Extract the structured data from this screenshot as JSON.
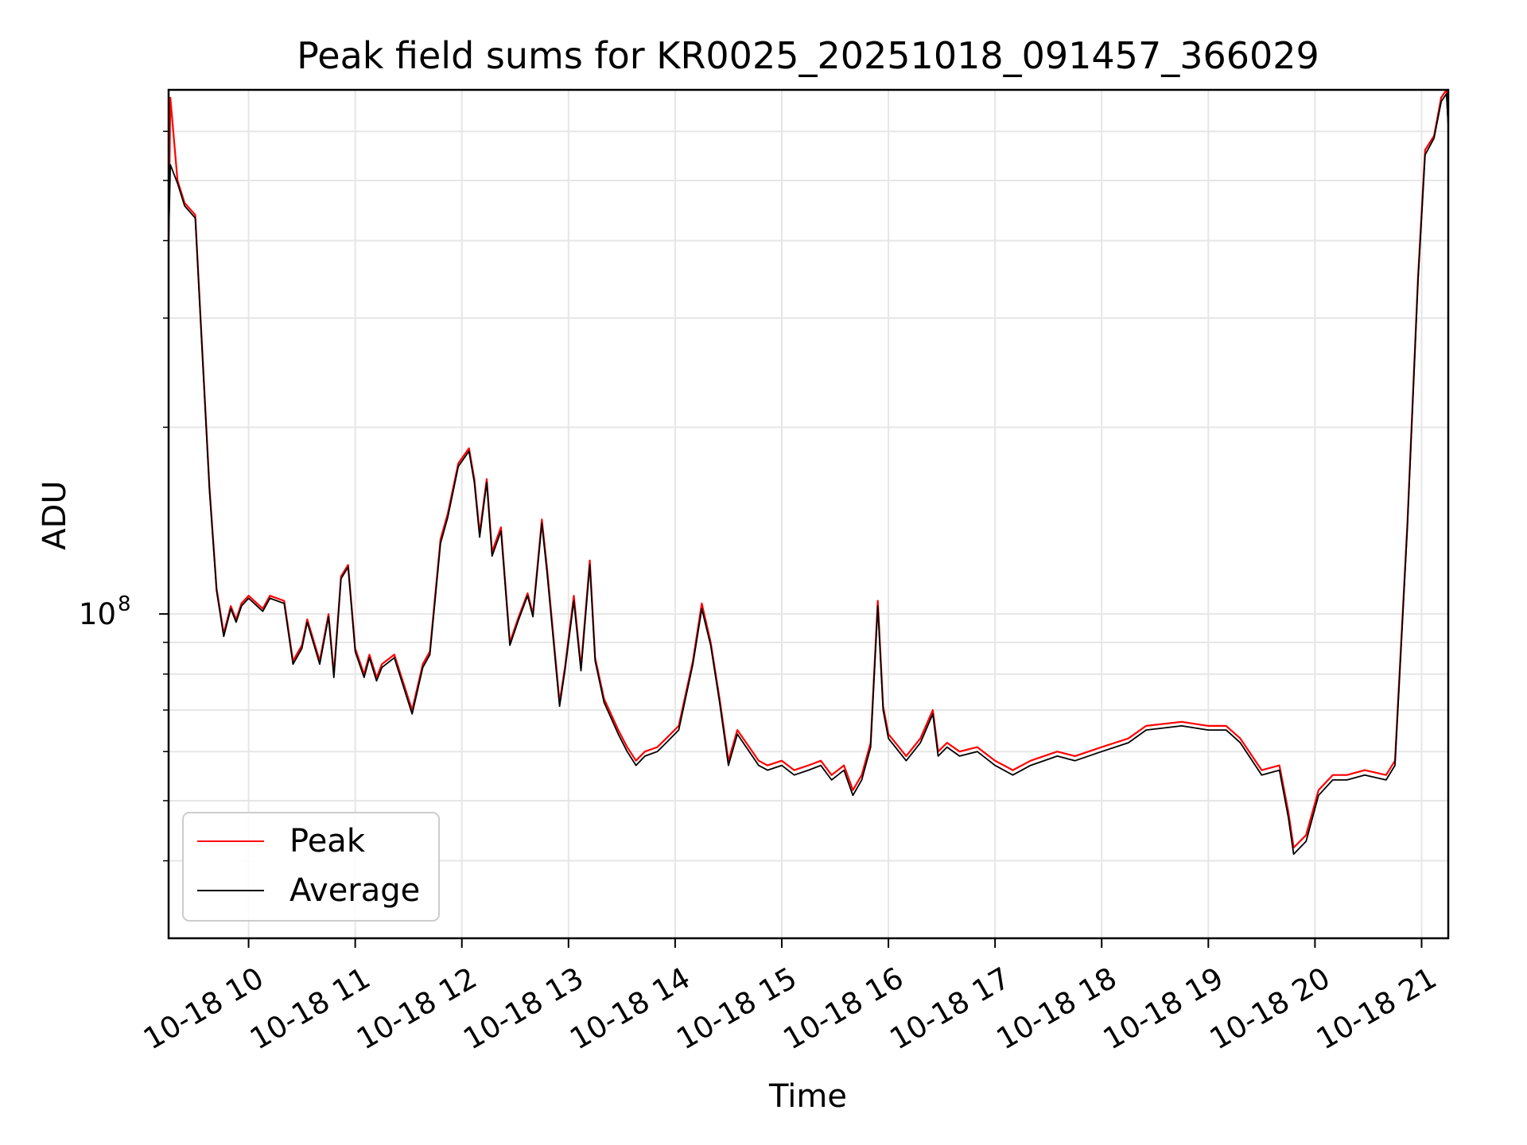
{
  "chart_data": {
    "type": "line",
    "title": "Peak field sums for KR0025_20251018_091457_366029",
    "xlabel": "Time",
    "ylabel": "ADU",
    "x_scale": "time",
    "y_scale": "log",
    "x_range": [
      "2025-10-18T09:15",
      "2025-10-18T21:15"
    ],
    "ylim": [
      30000000,
      700000000
    ],
    "x_ticks": [
      "10-18 10",
      "10-18 11",
      "10-18 12",
      "10-18 13",
      "10-18 14",
      "10-18 15",
      "10-18 16",
      "10-18 17",
      "10-18 18",
      "10-18 19",
      "10-18 20",
      "10-18 21"
    ],
    "x_tick_times": [
      "2025-10-18T10:00",
      "2025-10-18T11:00",
      "2025-10-18T12:00",
      "2025-10-18T13:00",
      "2025-10-18T14:00",
      "2025-10-18T15:00",
      "2025-10-18T16:00",
      "2025-10-18T17:00",
      "2025-10-18T18:00",
      "2025-10-18T19:00",
      "2025-10-18T20:00",
      "2025-10-18T21:00"
    ],
    "y_major_ticks": [
      {
        "value": 100000000,
        "base": "10",
        "exponent": "8"
      }
    ],
    "y_minor_ticks": [
      40000000,
      50000000,
      60000000,
      70000000,
      80000000,
      90000000,
      200000000,
      300000000,
      400000000,
      500000000,
      600000000
    ],
    "grid": true,
    "legend": {
      "position": "lower-left"
    },
    "series": [
      {
        "name": "Peak",
        "color": "#ff0000",
        "x": [
          "2025-10-18T09:15",
          "2025-10-18T09:16",
          "2025-10-18T09:20",
          "2025-10-18T09:24",
          "2025-10-18T09:27",
          "2025-10-18T09:30",
          "2025-10-18T09:33",
          "2025-10-18T09:38",
          "2025-10-18T09:42",
          "2025-10-18T09:46",
          "2025-10-18T09:50",
          "2025-10-18T09:53",
          "2025-10-18T09:56",
          "2025-10-18T10:00",
          "2025-10-18T10:08",
          "2025-10-18T10:12",
          "2025-10-18T10:20",
          "2025-10-18T10:25",
          "2025-10-18T10:30",
          "2025-10-18T10:33",
          "2025-10-18T10:40",
          "2025-10-18T10:45",
          "2025-10-18T10:48",
          "2025-10-18T10:52",
          "2025-10-18T10:56",
          "2025-10-18T11:00",
          "2025-10-18T11:05",
          "2025-10-18T11:08",
          "2025-10-18T11:12",
          "2025-10-18T11:15",
          "2025-10-18T11:22",
          "2025-10-18T11:28",
          "2025-10-18T11:32",
          "2025-10-18T11:38",
          "2025-10-18T11:42",
          "2025-10-18T11:48",
          "2025-10-18T11:52",
          "2025-10-18T11:58",
          "2025-10-18T12:04",
          "2025-10-18T12:07",
          "2025-10-18T12:10",
          "2025-10-18T12:14",
          "2025-10-18T12:17",
          "2025-10-18T12:22",
          "2025-10-18T12:27",
          "2025-10-18T12:32",
          "2025-10-18T12:37",
          "2025-10-18T12:40",
          "2025-10-18T12:45",
          "2025-10-18T12:48",
          "2025-10-18T12:55",
          "2025-10-18T12:58",
          "2025-10-18T13:03",
          "2025-10-18T13:07",
          "2025-10-18T13:12",
          "2025-10-18T13:15",
          "2025-10-18T13:20",
          "2025-10-18T13:28",
          "2025-10-18T13:33",
          "2025-10-18T13:38",
          "2025-10-18T13:43",
          "2025-10-18T13:50",
          "2025-10-18T13:55",
          "2025-10-18T14:02",
          "2025-10-18T14:10",
          "2025-10-18T14:15",
          "2025-10-18T14:20",
          "2025-10-18T14:25",
          "2025-10-18T14:30",
          "2025-10-18T14:35",
          "2025-10-18T14:40",
          "2025-10-18T14:47",
          "2025-10-18T14:52",
          "2025-10-18T15:00",
          "2025-10-18T15:07",
          "2025-10-18T15:15",
          "2025-10-18T15:22",
          "2025-10-18T15:28",
          "2025-10-18T15:35",
          "2025-10-18T15:40",
          "2025-10-18T15:45",
          "2025-10-18T15:50",
          "2025-10-18T15:54",
          "2025-10-18T15:57",
          "2025-10-18T16:00",
          "2025-10-18T16:10",
          "2025-10-18T16:18",
          "2025-10-18T16:25",
          "2025-10-18T16:28",
          "2025-10-18T16:33",
          "2025-10-18T16:40",
          "2025-10-18T16:50",
          "2025-10-18T17:00",
          "2025-10-18T17:10",
          "2025-10-18T17:20",
          "2025-10-18T17:35",
          "2025-10-18T17:45",
          "2025-10-18T18:00",
          "2025-10-18T18:15",
          "2025-10-18T18:25",
          "2025-10-18T18:45",
          "2025-10-18T19:00",
          "2025-10-18T19:10",
          "2025-10-18T19:18",
          "2025-10-18T19:30",
          "2025-10-18T19:40",
          "2025-10-18T19:45",
          "2025-10-18T19:48",
          "2025-10-18T19:55",
          "2025-10-18T20:02",
          "2025-10-18T20:10",
          "2025-10-18T20:18",
          "2025-10-18T20:28",
          "2025-10-18T20:40",
          "2025-10-18T20:45",
          "2025-10-18T20:52",
          "2025-10-18T20:58",
          "2025-10-18T21:02",
          "2025-10-18T21:07",
          "2025-10-18T21:11",
          "2025-10-18T21:14",
          "2025-10-18T21:15"
        ],
        "values": [
          400000000,
          680000000,
          500000000,
          460000000,
          450000000,
          440000000,
          300000000,
          160000000,
          110000000,
          93000000,
          103000000,
          98000000,
          104000000,
          107000000,
          102000000,
          107000000,
          105000000,
          84000000,
          89000000,
          98000000,
          84000000,
          100000000,
          80000000,
          115000000,
          120000000,
          88000000,
          80000000,
          86000000,
          79000000,
          83000000,
          86000000,
          76000000,
          70000000,
          83000000,
          87000000,
          132000000,
          145000000,
          175000000,
          185000000,
          165000000,
          135000000,
          165000000,
          126000000,
          138000000,
          90000000,
          99000000,
          108000000,
          100000000,
          142000000,
          118000000,
          72000000,
          82000000,
          107000000,
          82000000,
          122000000,
          85000000,
          73000000,
          65000000,
          61000000,
          58000000,
          60000000,
          61000000,
          63000000,
          66000000,
          84000000,
          104000000,
          90000000,
          73000000,
          58000000,
          65000000,
          62000000,
          58000000,
          57000000,
          58000000,
          56000000,
          57000000,
          58000000,
          55000000,
          57000000,
          52000000,
          55000000,
          62000000,
          105000000,
          71000000,
          64000000,
          59000000,
          63000000,
          70000000,
          60000000,
          62000000,
          60000000,
          61000000,
          58000000,
          56000000,
          58000000,
          60000000,
          59000000,
          61000000,
          63000000,
          66000000,
          67000000,
          66000000,
          66000000,
          63000000,
          56000000,
          57000000,
          48000000,
          42000000,
          44000000,
          52000000,
          55000000,
          55000000,
          56000000,
          55000000,
          58000000,
          140000000,
          350000000,
          560000000,
          590000000,
          680000000,
          700000000,
          620000000
        ]
      },
      {
        "name": "Average",
        "color": "#000000",
        "x": [
          "2025-10-18T09:15",
          "2025-10-18T09:16",
          "2025-10-18T09:20",
          "2025-10-18T09:24",
          "2025-10-18T09:27",
          "2025-10-18T09:30",
          "2025-10-18T09:33",
          "2025-10-18T09:38",
          "2025-10-18T09:42",
          "2025-10-18T09:46",
          "2025-10-18T09:50",
          "2025-10-18T09:53",
          "2025-10-18T09:56",
          "2025-10-18T10:00",
          "2025-10-18T10:08",
          "2025-10-18T10:12",
          "2025-10-18T10:20",
          "2025-10-18T10:25",
          "2025-10-18T10:30",
          "2025-10-18T10:33",
          "2025-10-18T10:40",
          "2025-10-18T10:45",
          "2025-10-18T10:48",
          "2025-10-18T10:52",
          "2025-10-18T10:56",
          "2025-10-18T11:00",
          "2025-10-18T11:05",
          "2025-10-18T11:08",
          "2025-10-18T11:12",
          "2025-10-18T11:15",
          "2025-10-18T11:22",
          "2025-10-18T11:28",
          "2025-10-18T11:32",
          "2025-10-18T11:38",
          "2025-10-18T11:42",
          "2025-10-18T11:48",
          "2025-10-18T11:52",
          "2025-10-18T11:58",
          "2025-10-18T12:04",
          "2025-10-18T12:07",
          "2025-10-18T12:10",
          "2025-10-18T12:14",
          "2025-10-18T12:17",
          "2025-10-18T12:22",
          "2025-10-18T12:27",
          "2025-10-18T12:32",
          "2025-10-18T12:37",
          "2025-10-18T12:40",
          "2025-10-18T12:45",
          "2025-10-18T12:48",
          "2025-10-18T12:55",
          "2025-10-18T12:58",
          "2025-10-18T13:03",
          "2025-10-18T13:07",
          "2025-10-18T13:12",
          "2025-10-18T13:15",
          "2025-10-18T13:20",
          "2025-10-18T13:28",
          "2025-10-18T13:33",
          "2025-10-18T13:38",
          "2025-10-18T13:43",
          "2025-10-18T13:50",
          "2025-10-18T13:55",
          "2025-10-18T14:02",
          "2025-10-18T14:10",
          "2025-10-18T14:15",
          "2025-10-18T14:20",
          "2025-10-18T14:25",
          "2025-10-18T14:30",
          "2025-10-18T14:35",
          "2025-10-18T14:40",
          "2025-10-18T14:47",
          "2025-10-18T14:52",
          "2025-10-18T15:00",
          "2025-10-18T15:07",
          "2025-10-18T15:15",
          "2025-10-18T15:22",
          "2025-10-18T15:28",
          "2025-10-18T15:35",
          "2025-10-18T15:40",
          "2025-10-18T15:45",
          "2025-10-18T15:50",
          "2025-10-18T15:54",
          "2025-10-18T15:57",
          "2025-10-18T16:00",
          "2025-10-18T16:10",
          "2025-10-18T16:18",
          "2025-10-18T16:25",
          "2025-10-18T16:28",
          "2025-10-18T16:33",
          "2025-10-18T16:40",
          "2025-10-18T16:50",
          "2025-10-18T17:00",
          "2025-10-18T17:10",
          "2025-10-18T17:20",
          "2025-10-18T17:35",
          "2025-10-18T17:45",
          "2025-10-18T18:00",
          "2025-10-18T18:15",
          "2025-10-18T18:25",
          "2025-10-18T18:45",
          "2025-10-18T19:00",
          "2025-10-18T19:10",
          "2025-10-18T19:18",
          "2025-10-18T19:30",
          "2025-10-18T19:40",
          "2025-10-18T19:45",
          "2025-10-18T19:48",
          "2025-10-18T19:55",
          "2025-10-18T20:02",
          "2025-10-18T20:10",
          "2025-10-18T20:18",
          "2025-10-18T20:28",
          "2025-10-18T20:40",
          "2025-10-18T20:45",
          "2025-10-18T20:52",
          "2025-10-18T20:58",
          "2025-10-18T21:02",
          "2025-10-18T21:07",
          "2025-10-18T21:11",
          "2025-10-18T21:14",
          "2025-10-18T21:15"
        ],
        "values": [
          400000000,
          530000000,
          495000000,
          455000000,
          445000000,
          435000000,
          297000000,
          158000000,
          109000000,
          92000000,
          102000000,
          97000000,
          103000000,
          106000000,
          101000000,
          106000000,
          104000000,
          83000000,
          88000000,
          97000000,
          83000000,
          99000000,
          79000000,
          114000000,
          119000000,
          87000000,
          79000000,
          85000000,
          78000000,
          82000000,
          85000000,
          75000000,
          69000000,
          82000000,
          86000000,
          130000000,
          143000000,
          173000000,
          183000000,
          163000000,
          133000000,
          163000000,
          124000000,
          136000000,
          89000000,
          98000000,
          107000000,
          99000000,
          140000000,
          116000000,
          71000000,
          81000000,
          105000000,
          81000000,
          120000000,
          84000000,
          72000000,
          64000000,
          60000000,
          57000000,
          59000000,
          60000000,
          62000000,
          65000000,
          83000000,
          102000000,
          89000000,
          72000000,
          57000000,
          64000000,
          61000000,
          57000000,
          56000000,
          57000000,
          55000000,
          56000000,
          57000000,
          54000000,
          56000000,
          51000000,
          54000000,
          61000000,
          103000000,
          70000000,
          63000000,
          58000000,
          62000000,
          69000000,
          59000000,
          61000000,
          59000000,
          60000000,
          57000000,
          55000000,
          57000000,
          59000000,
          58000000,
          60000000,
          62000000,
          65000000,
          66000000,
          65000000,
          65000000,
          62000000,
          55000000,
          56000000,
          47000000,
          41000000,
          43000000,
          51000000,
          54000000,
          54000000,
          55000000,
          54000000,
          57000000,
          138000000,
          345000000,
          550000000,
          585000000,
          670000000,
          690000000,
          610000000
        ]
      }
    ]
  }
}
